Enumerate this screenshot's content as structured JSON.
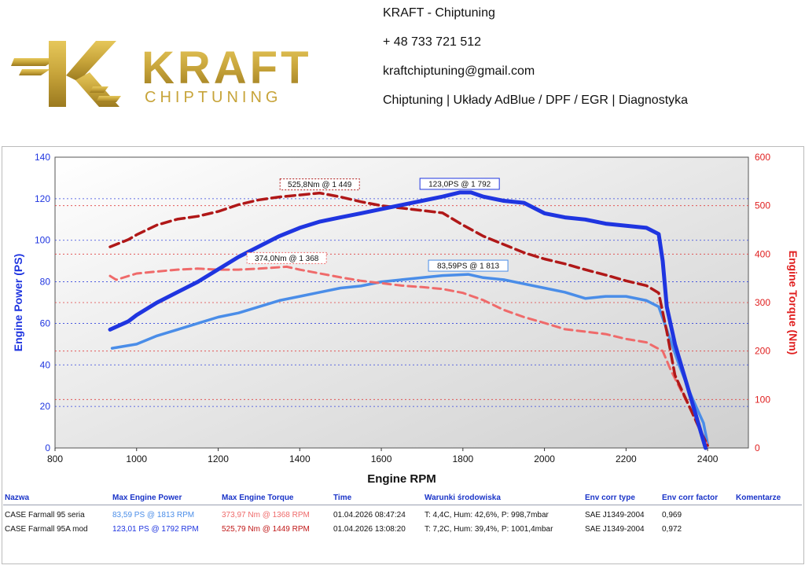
{
  "header": {
    "brand_main": "KRAFT",
    "brand_sub": "CHIPTUNING",
    "company": "KRAFT - Chiptuning",
    "phone": "+ 48 733 721 512",
    "email": "kraftchiptuning@gmail.com",
    "services": "Chiptuning | Układy AdBlue / DPF / EGR | Diagnostyka"
  },
  "colors": {
    "gold": "#c8a437",
    "power_mod": "#1f35e0",
    "power_stock": "#4a8de8",
    "torque_mod": "#b01818",
    "torque_stock": "#ef6a6a",
    "axis_left": "#1f35e0",
    "axis_right": "#e02020"
  },
  "chart_data": {
    "type": "line",
    "xlabel": "Engine RPM",
    "ylabel_left": "Engine Power (PS)",
    "ylabel_right": "Engine Torque (Nm)",
    "xlim": [
      800,
      2500
    ],
    "ylim_left": [
      0,
      140
    ],
    "ylim_right": [
      0,
      600
    ],
    "x_ticks": [
      800,
      1000,
      1200,
      1400,
      1600,
      1800,
      2000,
      2200,
      2400
    ],
    "y_left_ticks": [
      0,
      20,
      40,
      60,
      80,
      100,
      120,
      140
    ],
    "y_right_ticks": [
      0,
      100,
      200,
      300,
      400,
      500,
      600
    ],
    "grid": true,
    "series": [
      {
        "name": "CASE Farmall 95A mod",
        "quantity": "power",
        "axis": "left",
        "x": [
          935,
          980,
          1000,
          1050,
          1100,
          1150,
          1200,
          1250,
          1300,
          1350,
          1400,
          1450,
          1500,
          1550,
          1600,
          1650,
          1700,
          1750,
          1792,
          1820,
          1850,
          1900,
          1950,
          2000,
          2050,
          2100,
          2150,
          2200,
          2250,
          2280,
          2290,
          2300,
          2320,
          2350,
          2380,
          2395
        ],
        "y": [
          57,
          61,
          64,
          70,
          75,
          80,
          86,
          92,
          97,
          102,
          106,
          109,
          111,
          113,
          115,
          117,
          119,
          121,
          123,
          123,
          121,
          119,
          118,
          113,
          111,
          110,
          108,
          107,
          106,
          103,
          90,
          68,
          50,
          30,
          10,
          0
        ]
      },
      {
        "name": "CASE Farmall 95 seria",
        "quantity": "power",
        "axis": "left",
        "x": [
          940,
          1000,
          1050,
          1100,
          1150,
          1200,
          1250,
          1300,
          1350,
          1400,
          1450,
          1500,
          1550,
          1600,
          1650,
          1700,
          1750,
          1813,
          1850,
          1900,
          1950,
          2000,
          2050,
          2100,
          2150,
          2200,
          2250,
          2280,
          2300,
          2330,
          2360,
          2390,
          2400
        ],
        "y": [
          48,
          50,
          54,
          57,
          60,
          63,
          65,
          68,
          71,
          73,
          75,
          77,
          78,
          80,
          81,
          82,
          83,
          83.6,
          82,
          81,
          79,
          77,
          75,
          72,
          73,
          73,
          71,
          68,
          57,
          40,
          25,
          12,
          2
        ]
      },
      {
        "name": "CASE Farmall 95A mod",
        "quantity": "torque",
        "axis": "right",
        "x": [
          935,
          980,
          1000,
          1050,
          1100,
          1150,
          1200,
          1250,
          1300,
          1350,
          1400,
          1449,
          1500,
          1550,
          1600,
          1650,
          1700,
          1750,
          1800,
          1850,
          1900,
          1950,
          2000,
          2050,
          2100,
          2150,
          2200,
          2250,
          2280,
          2300,
          2320,
          2350,
          2380,
          2400
        ],
        "y": [
          415,
          430,
          440,
          460,
          472,
          478,
          488,
          502,
          512,
          518,
          522,
          526,
          518,
          508,
          500,
          495,
          490,
          485,
          460,
          437,
          420,
          403,
          390,
          380,
          368,
          357,
          345,
          335,
          320,
          240,
          150,
          95,
          40,
          5
        ]
      },
      {
        "name": "CASE Farmall 95 seria",
        "quantity": "torque",
        "axis": "right",
        "x": [
          935,
          950,
          1000,
          1050,
          1100,
          1150,
          1200,
          1250,
          1300,
          1368,
          1400,
          1450,
          1500,
          1550,
          1600,
          1650,
          1700,
          1750,
          1800,
          1850,
          1900,
          1950,
          2000,
          2050,
          2100,
          2150,
          2200,
          2250,
          2290,
          2310,
          2340,
          2370,
          2400
        ],
        "y": [
          355,
          347,
          360,
          364,
          368,
          370,
          368,
          368,
          370,
          374,
          368,
          360,
          352,
          345,
          340,
          335,
          332,
          328,
          320,
          305,
          285,
          270,
          258,
          245,
          240,
          235,
          225,
          218,
          200,
          160,
          110,
          60,
          5
        ]
      }
    ],
    "annotations": [
      {
        "text": "123,0PS @ 1 792",
        "color": "#1f35e0",
        "ref": "power_mod_max"
      },
      {
        "text": "83,59PS @ 1 813",
        "color": "#4a8de8",
        "ref": "power_stock_max"
      },
      {
        "text": "525,8Nm @ 1 449",
        "color": "#b01818",
        "ref": "torque_mod_max"
      },
      {
        "text": "374,0Nm @ 1 368",
        "color": "#ef6a6a",
        "ref": "torque_stock_max"
      }
    ]
  },
  "table": {
    "headers": [
      "Nazwa",
      "Max Engine Power",
      "Max Engine Torque",
      "Time",
      "Warunki środowiska",
      "Env corr type",
      "Env corr factor",
      "Komentarze"
    ],
    "rows": [
      {
        "name": "CASE Farmall 95 seria",
        "power": "83,59 PS @ 1813 RPM",
        "torque": "373,97 Nm @ 1368 RPM",
        "time": "01.04.2026 08:47:24",
        "conditions": "T: 4,4C, Hum: 42,6%, P: 998,7mbar",
        "corr_type": "SAE J1349-2004",
        "corr_factor": "0,969",
        "comment": ""
      },
      {
        "name": "CASE Farmall 95A mod",
        "power": "123,01 PS @ 1792 RPM",
        "torque": "525,79 Nm @ 1449 RPM",
        "time": "01.04.2026 13:08:20",
        "conditions": "T: 7,2C, Hum: 39,4%, P: 1001,4mbar",
        "corr_type": "SAE J1349-2004",
        "corr_factor": "0,972",
        "comment": ""
      }
    ]
  }
}
